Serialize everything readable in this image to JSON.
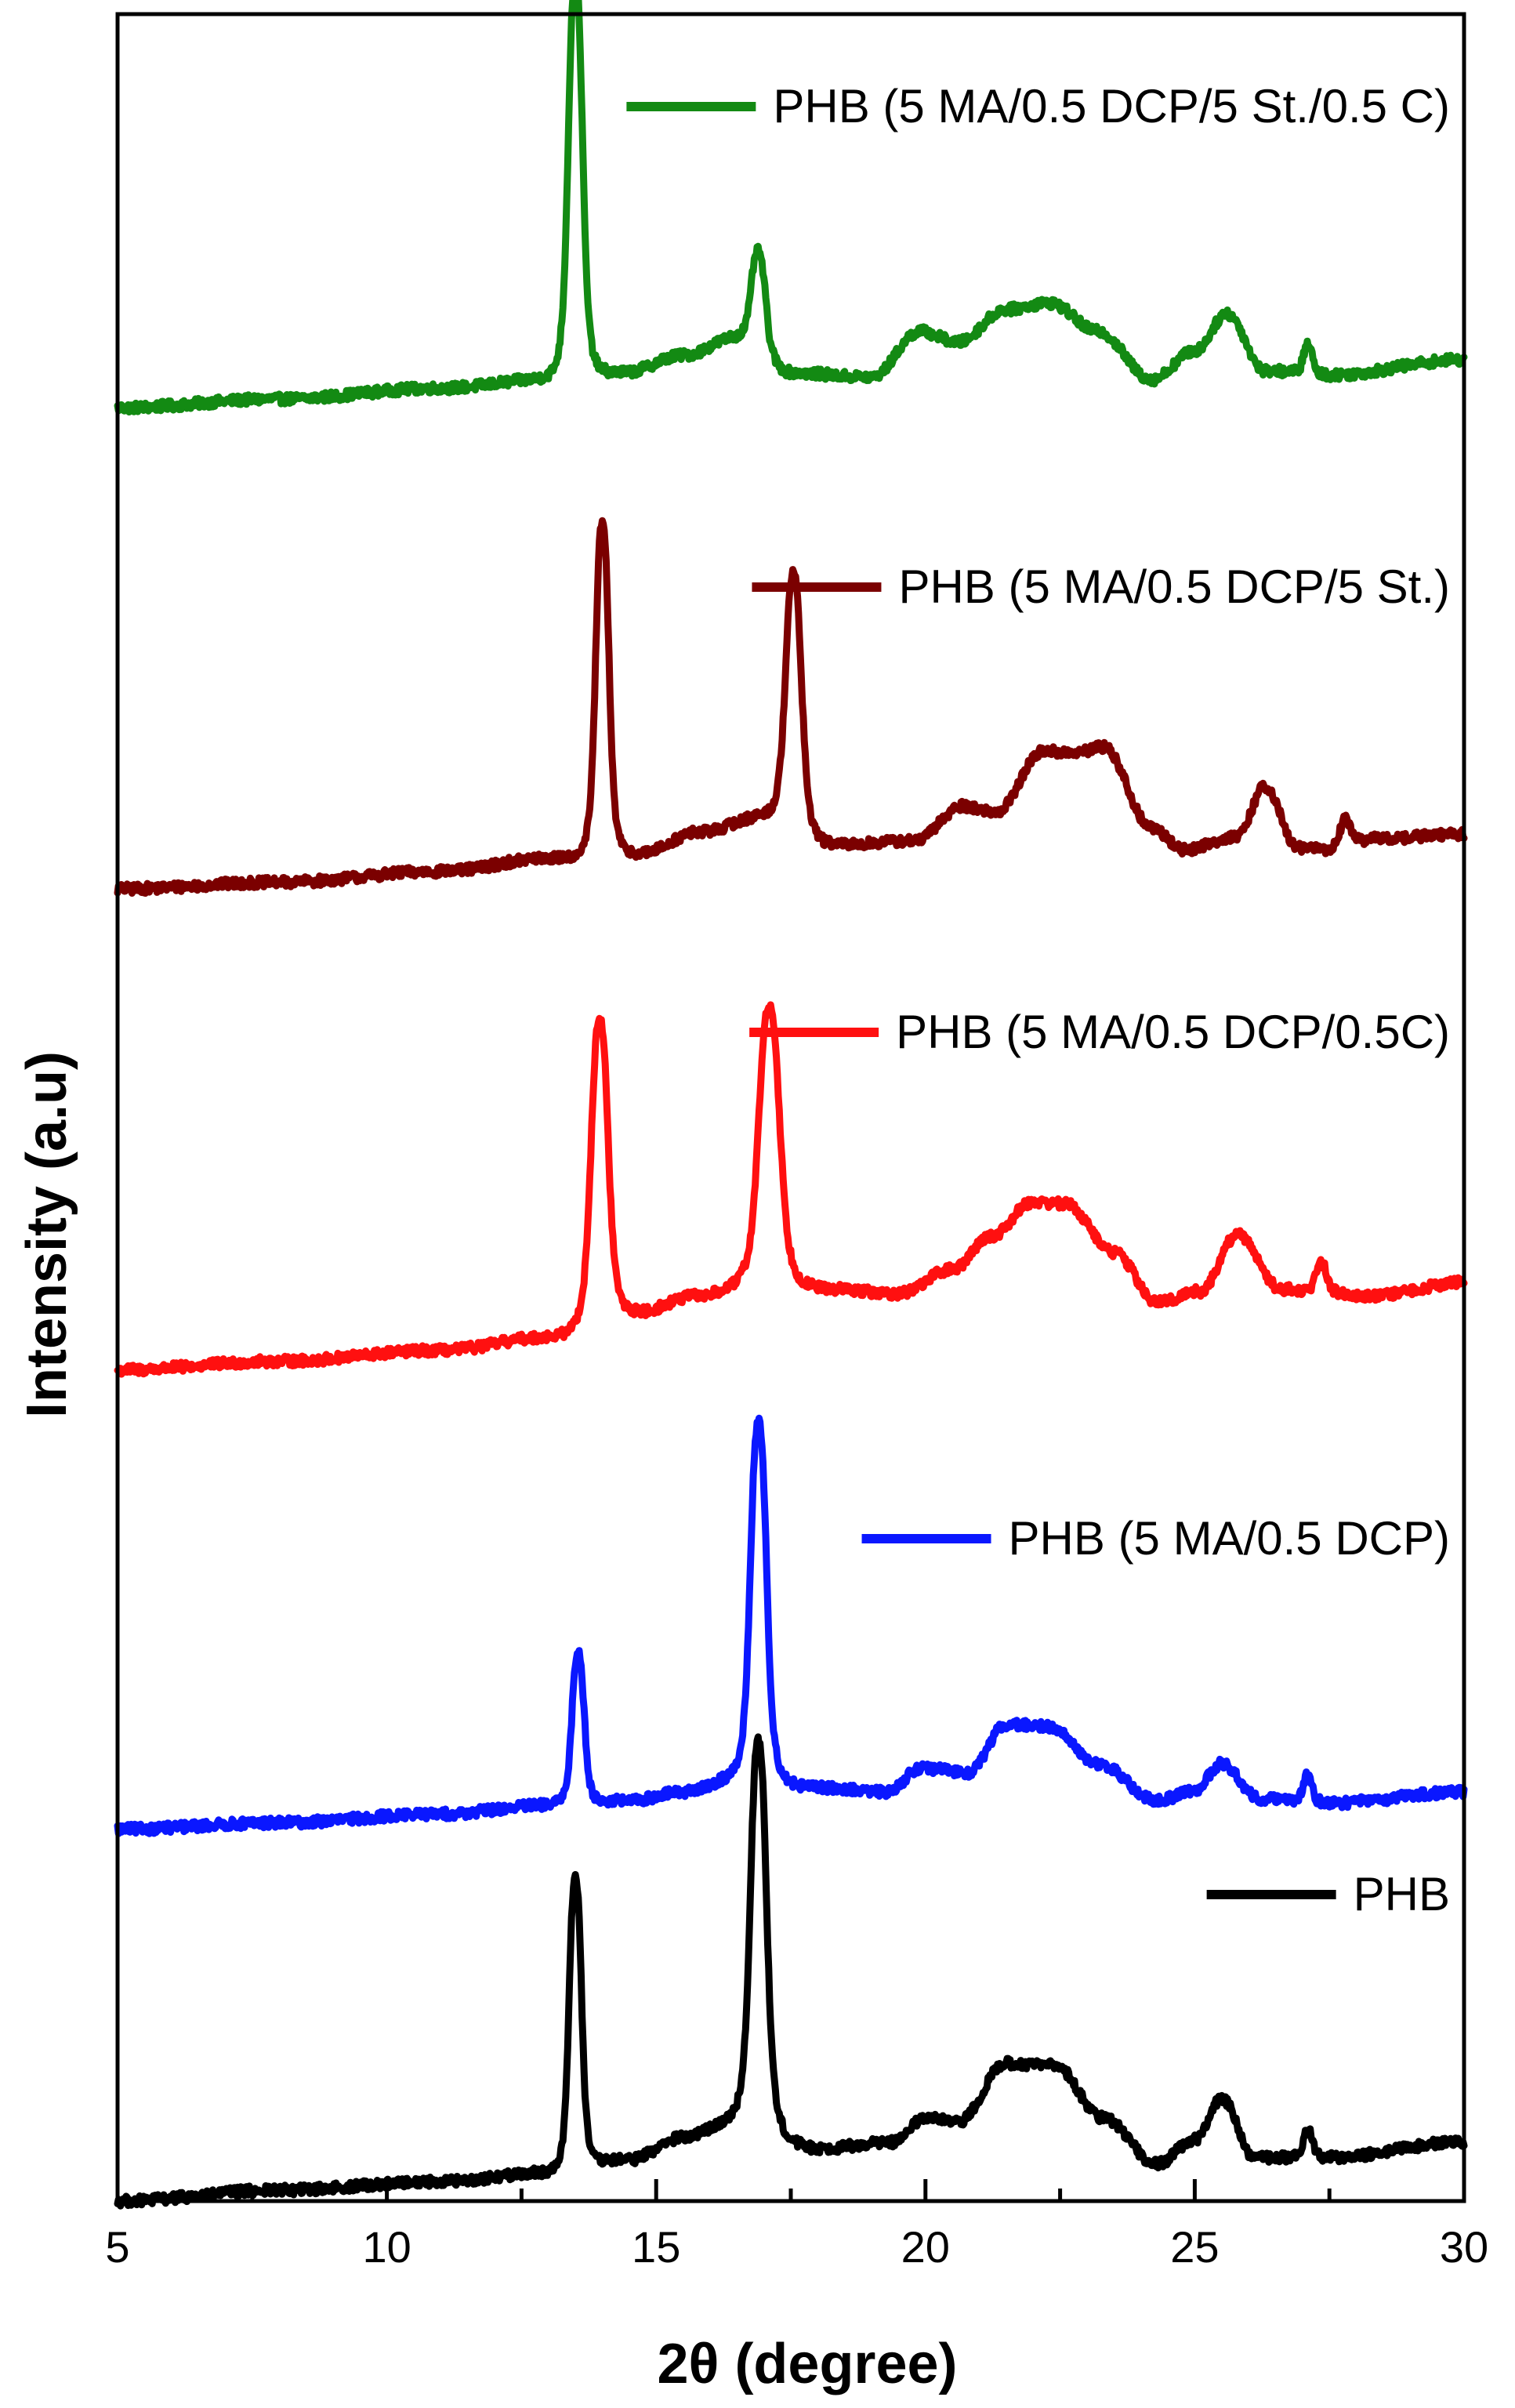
{
  "chart_data": {
    "type": "line",
    "title": "",
    "xlabel": "2θ (degree)",
    "ylabel": "Intensity (a.u)",
    "xlim": [
      5,
      30
    ],
    "ylim": [
      0,
      100
    ],
    "x_ticks": [
      5,
      10,
      15,
      20,
      25,
      30
    ],
    "y_ticks": [],
    "grid": false,
    "legend_placement": "right of each trace",
    "series": [
      {
        "name": "PHB (5 MA/0.5 DCP/5 St./0.5 C)",
        "color": "#138a13",
        "offset": 82,
        "baseline": [
          [
            5,
            0
          ],
          [
            8,
            0.4
          ],
          [
            11,
            0.9
          ],
          [
            13,
            1.3
          ],
          [
            14.4,
            1.6
          ],
          [
            15.5,
            2.4
          ],
          [
            16.5,
            3.2
          ],
          [
            17.5,
            1.6
          ],
          [
            19,
            1.4
          ],
          [
            19.9,
            3.5
          ],
          [
            20.6,
            3.0
          ],
          [
            21.5,
            4.5
          ],
          [
            22.3,
            4.8
          ],
          [
            23.2,
            3.5
          ],
          [
            24.2,
            1.3
          ],
          [
            25,
            2.6
          ],
          [
            25.6,
            4.3
          ],
          [
            26.3,
            1.7
          ],
          [
            27.5,
            1.5
          ],
          [
            30,
            2.2
          ]
        ],
        "peaks": [
          {
            "center": 13.5,
            "height": 18.3,
            "width": 0.15
          },
          {
            "center": 16.9,
            "height": 4.5,
            "width": 0.15
          },
          {
            "center": 27.1,
            "height": 1.3,
            "width": 0.1
          }
        ]
      },
      {
        "name": "PHB (5 MA/0.5 DCP/5 St.)",
        "color": "#7b0000",
        "offset": 60,
        "baseline": [
          [
            5,
            0
          ],
          [
            8,
            0.3
          ],
          [
            11,
            0.8
          ],
          [
            13,
            1.4
          ],
          [
            14.7,
            1.6
          ],
          [
            15.8,
            2.6
          ],
          [
            17,
            3.3
          ],
          [
            18.3,
            2.0
          ],
          [
            19.8,
            2.2
          ],
          [
            20.7,
            3.8
          ],
          [
            21.3,
            3.5
          ],
          [
            22.2,
            6.3
          ],
          [
            22.8,
            6.2
          ],
          [
            23.3,
            6.5
          ],
          [
            24.2,
            2.8
          ],
          [
            24.8,
            1.8
          ],
          [
            25.8,
            2.4
          ],
          [
            26.3,
            4.7
          ],
          [
            26.9,
            1.9
          ],
          [
            27.4,
            1.8
          ],
          [
            28.4,
            2.3
          ],
          [
            30,
            2.5
          ]
        ],
        "peaks": [
          {
            "center": 14.0,
            "height": 15.2,
            "width": 0.14
          },
          {
            "center": 17.55,
            "height": 11.6,
            "width": 0.17
          },
          {
            "center": 27.8,
            "height": 1.2,
            "width": 0.12
          }
        ]
      },
      {
        "name": "PHB (5 MA/0.5 DCP/0.5C)",
        "color": "#ff1010",
        "offset": 38,
        "baseline": [
          [
            5,
            0
          ],
          [
            8,
            0.4
          ],
          [
            11,
            0.9
          ],
          [
            13,
            1.5
          ],
          [
            14.6,
            2.6
          ],
          [
            15.8,
            3.4
          ],
          [
            17,
            4.0
          ],
          [
            18.2,
            3.7
          ],
          [
            19.5,
            3.5
          ],
          [
            20.5,
            4.6
          ],
          [
            21.2,
            6.1
          ],
          [
            22.0,
            7.7
          ],
          [
            22.6,
            7.6
          ],
          [
            23.5,
            5.4
          ],
          [
            24.3,
            3.1
          ],
          [
            25.1,
            3.6
          ],
          [
            25.8,
            6.2
          ],
          [
            26.6,
            3.7
          ],
          [
            27.1,
            3.6
          ],
          [
            28.3,
            3.4
          ],
          [
            30,
            4.0
          ]
        ],
        "peaks": [
          {
            "center": 13.95,
            "height": 13.8,
            "width": 0.18
          },
          {
            "center": 17.1,
            "height": 12.6,
            "width": 0.22
          },
          {
            "center": 27.35,
            "height": 1.3,
            "width": 0.12
          }
        ]
      },
      {
        "name": "PHB (5 MA/0.5 DCP)",
        "color": "#0a17ff",
        "offset": 17,
        "baseline": [
          [
            5,
            0
          ],
          [
            8,
            0.3
          ],
          [
            11,
            0.7
          ],
          [
            13,
            1.1
          ],
          [
            14.5,
            1.3
          ],
          [
            15.5,
            1.7
          ],
          [
            16.5,
            2.3
          ],
          [
            18,
            1.9
          ],
          [
            19.3,
            1.7
          ],
          [
            19.9,
            2.8
          ],
          [
            20.8,
            2.6
          ],
          [
            21.5,
            4.8
          ],
          [
            22.3,
            4.7
          ],
          [
            23.2,
            3.0
          ],
          [
            24.3,
            1.3
          ],
          [
            25.0,
            1.8
          ],
          [
            25.5,
            3.0
          ],
          [
            26.2,
            1.4
          ],
          [
            27.5,
            1.2
          ],
          [
            30,
            1.7
          ]
        ],
        "peaks": [
          {
            "center": 13.55,
            "height": 6.9,
            "width": 0.13
          },
          {
            "center": 16.9,
            "height": 16.4,
            "width": 0.17
          },
          {
            "center": 27.1,
            "height": 1.2,
            "width": 0.1
          }
        ]
      },
      {
        "name": "PHB",
        "color": "#000000",
        "offset": 0,
        "baseline": [
          [
            5,
            0
          ],
          [
            8,
            0.5
          ],
          [
            11,
            0.9
          ],
          [
            13,
            1.3
          ],
          [
            14.5,
            1.9
          ],
          [
            15.5,
            2.9
          ],
          [
            16.5,
            3.7
          ],
          [
            18,
            2.4
          ],
          [
            19.4,
            2.7
          ],
          [
            20,
            3.8
          ],
          [
            20.6,
            3.6
          ],
          [
            21.5,
            6.3
          ],
          [
            22.4,
            6.2
          ],
          [
            23.3,
            3.8
          ],
          [
            24.3,
            1.7
          ],
          [
            25.0,
            2.8
          ],
          [
            25.5,
            4.7
          ],
          [
            26.1,
            2.0
          ],
          [
            27.5,
            2.0
          ],
          [
            30,
            2.7
          ]
        ],
        "peaks": [
          {
            "center": 13.5,
            "height": 13.4,
            "width": 0.13
          },
          {
            "center": 16.9,
            "height": 17.6,
            "width": 0.17
          },
          {
            "center": 27.1,
            "height": 1.2,
            "width": 0.1
          }
        ]
      }
    ]
  }
}
